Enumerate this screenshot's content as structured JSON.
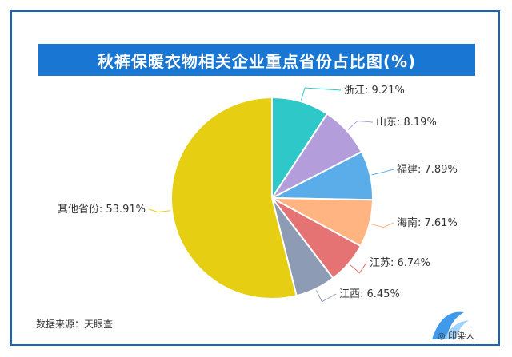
{
  "chart_data": {
    "type": "pie",
    "title": "秋裤保暖衣物相关企业重点省份占比图(%)",
    "slices": [
      {
        "label": "浙江",
        "value": 9.21,
        "display": "浙江: 9.21%",
        "color": "#2ec8c8"
      },
      {
        "label": "山东",
        "value": 8.19,
        "display": "山东: 8.19%",
        "color": "#b39ddb"
      },
      {
        "label": "福建",
        "value": 7.89,
        "display": "福建: 7.89%",
        "color": "#5aade8"
      },
      {
        "label": "海南",
        "value": 7.61,
        "display": "海南: 7.61%",
        "color": "#ffb482"
      },
      {
        "label": "江苏",
        "value": 6.74,
        "display": "江苏: 6.74%",
        "color": "#e57373"
      },
      {
        "label": "江西",
        "value": 6.45,
        "display": "江西: 6.45%",
        "color": "#8e9bb5"
      },
      {
        "label": "其他省份",
        "value": 53.91,
        "display": "其他省份: 53.91%",
        "color": "#e6cf12"
      }
    ],
    "start_angle": "12 o'clock",
    "direction": "clockwise"
  },
  "source": "数据来源：天眼查",
  "watermark": "印染人"
}
